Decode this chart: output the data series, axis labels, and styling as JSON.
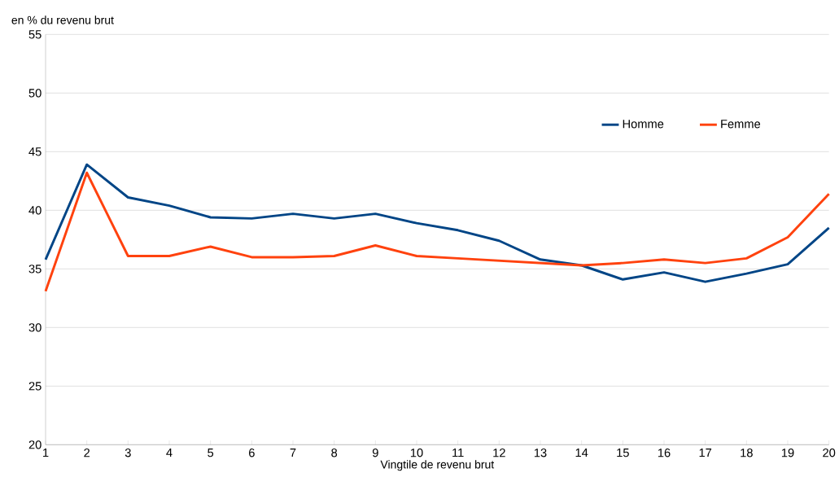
{
  "chart_data": {
    "type": "line",
    "ylabel": "en % du revenu brut",
    "xlabel": "Vingtile de revenu brut",
    "categories": [
      "1",
      "2",
      "3",
      "4",
      "5",
      "6",
      "7",
      "8",
      "9",
      "10",
      "11",
      "12",
      "13",
      "14",
      "15",
      "16",
      "17",
      "18",
      "19",
      "20"
    ],
    "series": [
      {
        "name": "Homme",
        "color": "#004586",
        "values": [
          35.8,
          43.9,
          41.1,
          40.4,
          39.4,
          39.3,
          39.7,
          39.3,
          39.7,
          38.9,
          38.3,
          37.4,
          35.8,
          35.3,
          34.1,
          34.7,
          33.9,
          34.6,
          35.4,
          38.5
        ]
      },
      {
        "name": "Femme",
        "color": "#ff420e",
        "values": [
          33.1,
          43.2,
          36.1,
          36.1,
          36.9,
          36.0,
          36.0,
          36.1,
          37.0,
          36.1,
          35.9,
          35.7,
          35.5,
          35.3,
          35.5,
          35.8,
          35.5,
          35.9,
          37.7,
          41.4
        ]
      }
    ],
    "ylim": [
      20,
      55
    ],
    "yticks": [
      20,
      25,
      30,
      35,
      40,
      45,
      50,
      55
    ],
    "grid": "y",
    "legend": "top right",
    "marker": "none",
    "line_style": "solid"
  }
}
